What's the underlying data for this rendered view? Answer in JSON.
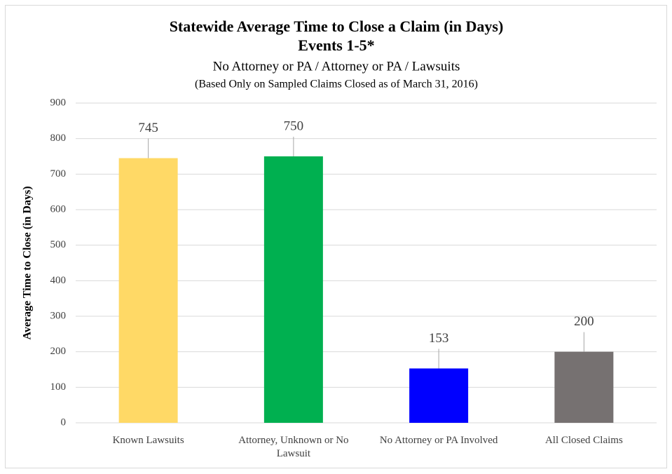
{
  "chart_data": {
    "type": "bar",
    "title_lines": [
      "Statewide Average Time to Close a Claim (in Days)",
      "Events 1-5*"
    ],
    "subtitle_lines": [
      "No Attorney or PA / Attorney or PA / Lawsuits",
      "(Based Only on Sampled Claims Closed as of March 31, 2016)"
    ],
    "y_label": "Average Time to Close (in Days)",
    "categories": [
      "Known Lawsuits",
      "Attorney, Unknown or No Lawsuit",
      "No Attorney or PA Involved",
      "All Closed Claims"
    ],
    "values": [
      745,
      750,
      153,
      200
    ],
    "colors": [
      "#ffd966",
      "#00b050",
      "#0000ff",
      "#767171"
    ],
    "ylim": [
      0,
      900
    ],
    "yticks": [
      0,
      100,
      200,
      300,
      400,
      500,
      600,
      700,
      800,
      900
    ],
    "grid": true
  }
}
